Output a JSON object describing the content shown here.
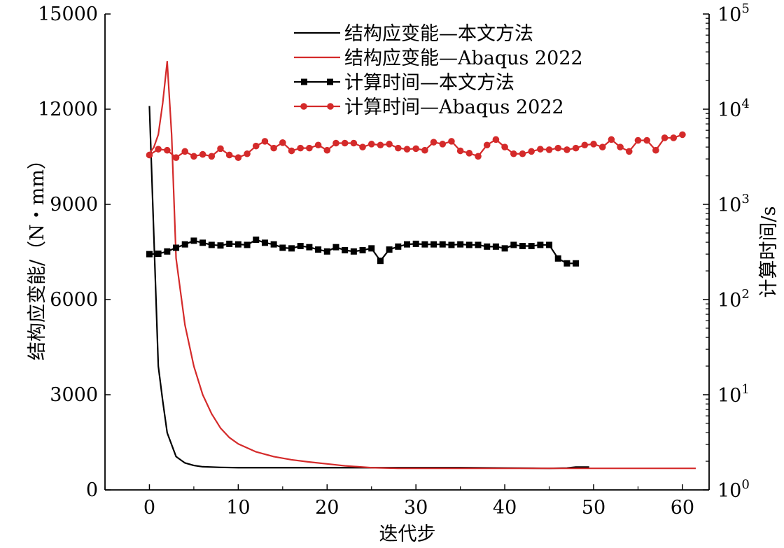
{
  "chart_data": {
    "type": "line",
    "xlabel": "迭代步",
    "ylabel_left": "结构应变能/（N・mm）",
    "ylabel_right": "计算时间/s",
    "xlim": [
      -5,
      63
    ],
    "ylim_left": [
      0,
      15000
    ],
    "ylim_right": [
      1,
      100000
    ],
    "right_axis_scale": "log",
    "x_ticks": [
      "0",
      "10",
      "20",
      "30",
      "40",
      "50",
      "60"
    ],
    "y_left_ticks": [
      "0",
      "3000",
      "6000",
      "9000",
      "12000",
      "15000"
    ],
    "y_right_ticks": [
      {
        "base": "10",
        "exp": "0"
      },
      {
        "base": "10",
        "exp": "1"
      },
      {
        "base": "10",
        "exp": "2"
      },
      {
        "base": "10",
        "exp": "3"
      },
      {
        "base": "10",
        "exp": "4"
      },
      {
        "base": "10",
        "exp": "5"
      }
    ],
    "legend_position": "top-center",
    "grid": false,
    "series": [
      {
        "name": "结构应变能—本文方法",
        "axis": "left",
        "color": "#000000",
        "marker": "none",
        "x": [
          0,
          0.5,
          1,
          1.5,
          2,
          3,
          4,
          5,
          6,
          8,
          10,
          15,
          20,
          25,
          30,
          35,
          40,
          45,
          47,
          48,
          49,
          49.5
        ],
        "y": [
          12100,
          8000,
          3900,
          2800,
          1800,
          1050,
          850,
          770,
          730,
          710,
          700,
          700,
          700,
          700,
          700,
          700,
          690,
          680,
          690,
          720,
          720,
          720
        ]
      },
      {
        "name": "结构应变能—Abaqus 2022",
        "axis": "left",
        "color": "#d42a2a",
        "marker": "none",
        "x": [
          0,
          0.5,
          1,
          1.5,
          2,
          2.5,
          3,
          4,
          5,
          6,
          7,
          8,
          9,
          10,
          12,
          14,
          16,
          18,
          20,
          22,
          25,
          28,
          30,
          35,
          40,
          45,
          50,
          55,
          61.5
        ],
        "y": [
          10600,
          10800,
          11200,
          12200,
          13500,
          11200,
          7300,
          5200,
          3900,
          3000,
          2400,
          1950,
          1650,
          1450,
          1200,
          1050,
          950,
          880,
          820,
          760,
          700,
          680,
          680,
          680,
          680,
          680,
          680,
          680,
          680
        ]
      },
      {
        "name": "计算时间—本文方法",
        "axis": "right",
        "color": "#000000",
        "marker": "square",
        "x": [
          0,
          1,
          2,
          3,
          4,
          5,
          6,
          7,
          8,
          9,
          10,
          11,
          12,
          13,
          14,
          15,
          16,
          17,
          18,
          19,
          20,
          21,
          22,
          23,
          24,
          25,
          26,
          27,
          28,
          29,
          30,
          31,
          32,
          33,
          34,
          35,
          36,
          37,
          38,
          39,
          40,
          41,
          42,
          43,
          44,
          45,
          46,
          47,
          48
        ],
        "y": [
          300,
          303,
          320,
          350,
          380,
          415,
          395,
          375,
          370,
          385,
          380,
          375,
          425,
          395,
          380,
          350,
          345,
          365,
          355,
          335,
          320,
          355,
          330,
          320,
          330,
          345,
          255,
          335,
          360,
          380,
          385,
          380,
          380,
          380,
          375,
          380,
          375,
          375,
          360,
          360,
          345,
          375,
          365,
          365,
          375,
          375,
          270,
          240,
          240
        ]
      },
      {
        "name": "计算时间—Abaqus 2022",
        "axis": "right",
        "color": "#d42a2a",
        "marker": "circle",
        "x": [
          0,
          1,
          2,
          3,
          4,
          5,
          6,
          7,
          8,
          9,
          10,
          11,
          12,
          13,
          14,
          15,
          16,
          17,
          18,
          19,
          20,
          21,
          22,
          23,
          24,
          25,
          26,
          27,
          28,
          29,
          30,
          31,
          32,
          33,
          34,
          35,
          36,
          37,
          38,
          39,
          40,
          41,
          42,
          43,
          44,
          45,
          46,
          47,
          48,
          49,
          50,
          51,
          52,
          53,
          54,
          55,
          56,
          57,
          58,
          59,
          60
        ],
        "y": [
          3300,
          3800,
          3700,
          3100,
          3600,
          3200,
          3350,
          3200,
          3850,
          3300,
          3100,
          3400,
          4100,
          4600,
          3900,
          4450,
          3650,
          3900,
          3900,
          4200,
          3700,
          4400,
          4400,
          4400,
          4000,
          4300,
          4200,
          4300,
          3900,
          3800,
          3850,
          3700,
          4500,
          4300,
          4600,
          3650,
          3450,
          3200,
          4200,
          4800,
          4000,
          3400,
          3400,
          3600,
          3800,
          3750,
          3900,
          3750,
          3900,
          4200,
          4300,
          4000,
          4800,
          4000,
          3600,
          4700,
          4700,
          3700,
          5000,
          5000,
          5400
        ]
      }
    ]
  }
}
